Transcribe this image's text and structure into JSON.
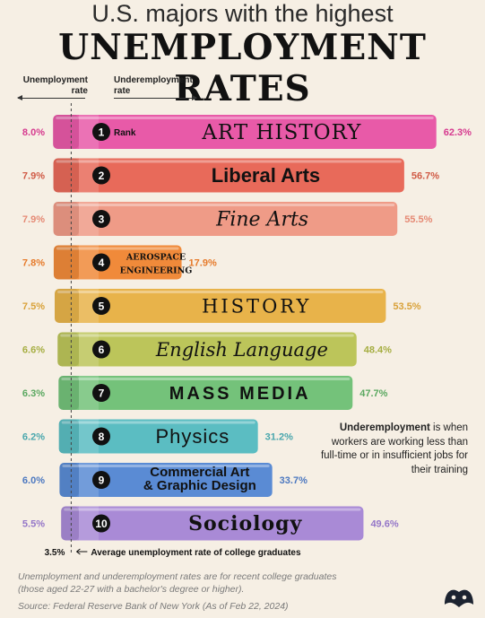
{
  "header": {
    "title_top": "U.S. majors with the highest",
    "title_main": "UNEMPLOYMENT RATES"
  },
  "axis_labels": {
    "unemployment": [
      "Unemployment",
      "rate"
    ],
    "underemployment": [
      "Underemployment",
      "rate"
    ]
  },
  "rank_label": "Rank",
  "note": {
    "bold": "Underemployment",
    "rest": " is when workers are working less than full-time or in insufficient jobs for their training"
  },
  "average": {
    "value_label": "3.5%",
    "text": "Average unemployment rate of college graduates"
  },
  "footer": {
    "line1": "Unemployment and underemployment rates are for recent college graduates",
    "line2": "(those aged 22-27 with a bachelor's degree or higher).",
    "source": "Source: Federal Reserve Bank of New York (As of Feb 22, 2024)"
  },
  "chart_data": {
    "type": "bar",
    "categories": [
      "ART HISTORY",
      "Liberal Arts",
      "Fine Arts",
      "AEROSPACE ENGINEERING",
      "HISTORY",
      "English Language",
      "MASS MEDIA",
      "Physics",
      "Commercial Art & Graphic Design",
      "Sociology"
    ],
    "series": [
      {
        "name": "Unemployment rate",
        "values": [
          8.0,
          7.9,
          7.9,
          7.8,
          7.5,
          6.6,
          6.3,
          6.2,
          6.0,
          5.5
        ],
        "labels": [
          "8.0%",
          "7.9%",
          "7.9%",
          "7.8%",
          "7.5%",
          "6.6%",
          "6.3%",
          "6.2%",
          "6.0%",
          "5.5%"
        ]
      },
      {
        "name": "Underemployment rate",
        "values": [
          62.3,
          56.7,
          55.5,
          17.9,
          53.5,
          48.4,
          47.7,
          31.2,
          33.7,
          49.6
        ],
        "labels": [
          "62.3%",
          "56.7%",
          "55.5%",
          "17.9%",
          "53.5%",
          "48.4%",
          "47.7%",
          "31.2%",
          "33.7%",
          "49.6%"
        ]
      }
    ],
    "ranks": [
      "1",
      "2",
      "3",
      "4",
      "5",
      "6",
      "7",
      "8",
      "9",
      "10"
    ],
    "title": "U.S. majors with the highest UNEMPLOYMENT RATES",
    "average_unemployment": 3.5,
    "colors": [
      "#e85aa8",
      "#e86a5a",
      "#ef9b87",
      "#f08a3a",
      "#e8b34a",
      "#bcc55a",
      "#74c27a",
      "#5bbdc2",
      "#5a8bd4",
      "#a98ad6"
    ],
    "label_colors": [
      "#d63a8f",
      "#d05a45",
      "#e58a75",
      "#e67a2a",
      "#d9a23a",
      "#a6ae42",
      "#5aa860",
      "#4aa7ad",
      "#4c78c0",
      "#9476c8"
    ]
  }
}
